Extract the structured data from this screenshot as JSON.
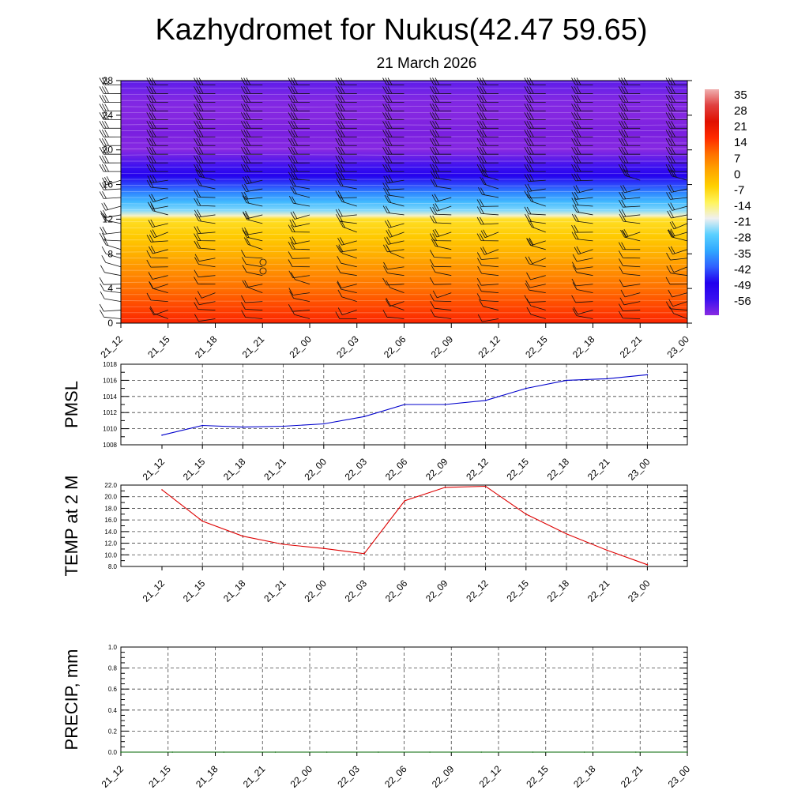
{
  "title": "Kazhydromet for Nukus(42.47 59.65)",
  "subtitle": "21 March 2026",
  "chart_data": [
    {
      "type": "heatmap",
      "name": "temperature-cross-section",
      "y_ticks": [
        "0",
        "4",
        "8",
        "12",
        "16",
        "20",
        "24",
        "28"
      ],
      "ylim": [
        0,
        28
      ],
      "x_ticks": [
        "21_12",
        "21_15",
        "21_18",
        "21_21",
        "22_00",
        "22_03",
        "22_06",
        "22_09",
        "22_12",
        "22_15",
        "22_18",
        "22_21",
        "23_00"
      ],
      "colorbar_labels": [
        "35",
        "28",
        "21",
        "14",
        "7",
        "0",
        "-7",
        "-14",
        "-21",
        "-28",
        "-35",
        "-42",
        "-49",
        "-56"
      ],
      "profile": [
        [
          0,
          22
        ],
        [
          2,
          18
        ],
        [
          4,
          14
        ],
        [
          6,
          10
        ],
        [
          8,
          5
        ],
        [
          10,
          1
        ],
        [
          12,
          -3
        ],
        [
          12.4,
          -12
        ],
        [
          13,
          -19
        ],
        [
          14,
          -25
        ],
        [
          15,
          -31
        ],
        [
          16,
          -37
        ],
        [
          17,
          -43
        ],
        [
          18,
          -49
        ],
        [
          20,
          -57
        ],
        [
          22,
          -62
        ],
        [
          24,
          -58
        ],
        [
          26,
          -55
        ],
        [
          28,
          -52
        ]
      ],
      "colors": [
        "#8a2be2",
        "#2200ee",
        "#5090ff",
        "#30c8ff",
        "#f0f0f0",
        "#ffe135",
        "#ff9900",
        "#ff2a00",
        "#e01000"
      ]
    },
    {
      "type": "line",
      "name": "pmsl",
      "ylabel": "PMSL",
      "ylim": [
        1008,
        1018
      ],
      "y_ticks": [
        "1008",
        "1010",
        "1012",
        "1014",
        "1016",
        "1018"
      ],
      "x_ticks": [
        "21_12",
        "21_15",
        "21_18",
        "21_21",
        "22_00",
        "22_03",
        "22_06",
        "22_09",
        "22_12",
        "22_15",
        "22_18",
        "22_21",
        "23_00"
      ],
      "values": [
        1009.2,
        1010.4,
        1010.2,
        1010.3,
        1010.6,
        1011.5,
        1013.0,
        1013.0,
        1013.5,
        1015.0,
        1016.0,
        1016.2,
        1016.7
      ],
      "color": "#0000cc"
    },
    {
      "type": "line",
      "name": "temp2m",
      "ylabel": "TEMP at 2 M",
      "ylim": [
        8,
        22
      ],
      "y_ticks": [
        "8.0",
        "10.0",
        "12.0",
        "14.0",
        "16.0",
        "18.0",
        "20.0",
        "22.0"
      ],
      "x_ticks": [
        "21_12",
        "21_15",
        "21_18",
        "21_21",
        "22_00",
        "22_03",
        "22_06",
        "22_09",
        "22_12",
        "22_15",
        "22_18",
        "22_21",
        "23_00"
      ],
      "values": [
        21.2,
        15.8,
        13.2,
        11.8,
        11.1,
        10.2,
        19.3,
        21.6,
        21.8,
        17.0,
        13.6,
        10.8,
        8.3
      ],
      "color": "#dd0000"
    },
    {
      "type": "line",
      "name": "precip",
      "ylabel": "PRECIP, mm",
      "ylim": [
        0,
        1
      ],
      "y_ticks": [
        "0.0",
        "0.2",
        "0.4",
        "0.6",
        "0.8",
        "1.0"
      ],
      "x_ticks": [
        "21_12",
        "21_15",
        "21_18",
        "21_21",
        "22_00",
        "22_03",
        "22_06",
        "22_09",
        "22_12",
        "22_15",
        "22_18",
        "22_21",
        "23_00"
      ],
      "values": [
        0,
        0,
        0,
        0,
        0,
        0,
        0,
        0,
        0,
        0,
        0,
        0
      ],
      "color": "#006600"
    }
  ]
}
